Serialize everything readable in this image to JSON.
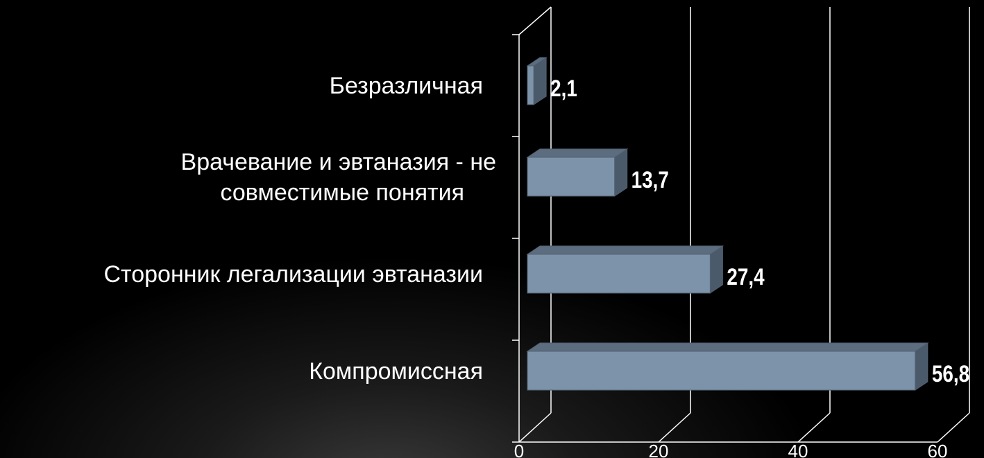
{
  "chart_data": {
    "type": "bar",
    "orientation": "horizontal",
    "style": "3d",
    "categories": [
      "Безразличная",
      "Врачевание и эвтаназия - не совместимые понятия",
      "Сторонник легализации эвтаназии",
      "Компромиссная"
    ],
    "category_lines": [
      [
        "Безразличная"
      ],
      [
        "Врачевание и эвтаназия - не",
        "совместимые понятия"
      ],
      [
        "Сторонник легализации эвтаназии"
      ],
      [
        "Компромиссная"
      ]
    ],
    "values": [
      2.1,
      13.7,
      27.4,
      56.8
    ],
    "data_labels": [
      "2,1",
      "13,7",
      "27,4",
      "56,8"
    ],
    "xlim": [
      0,
      60
    ],
    "ticks": [
      0,
      20,
      40,
      60
    ],
    "tick_labels": [
      "0",
      "20",
      "40",
      "60"
    ],
    "title": "",
    "xlabel": "",
    "ylabel": "",
    "grid": true,
    "legend": "none",
    "colors": {
      "background": "#000000",
      "bar_front": "#7d93aa",
      "bar_top": "#5c6d80",
      "bar_side": "#4b5a6b",
      "bar_edge": "#51606f",
      "axis": "#ffffff",
      "text": "#ffffff"
    }
  }
}
